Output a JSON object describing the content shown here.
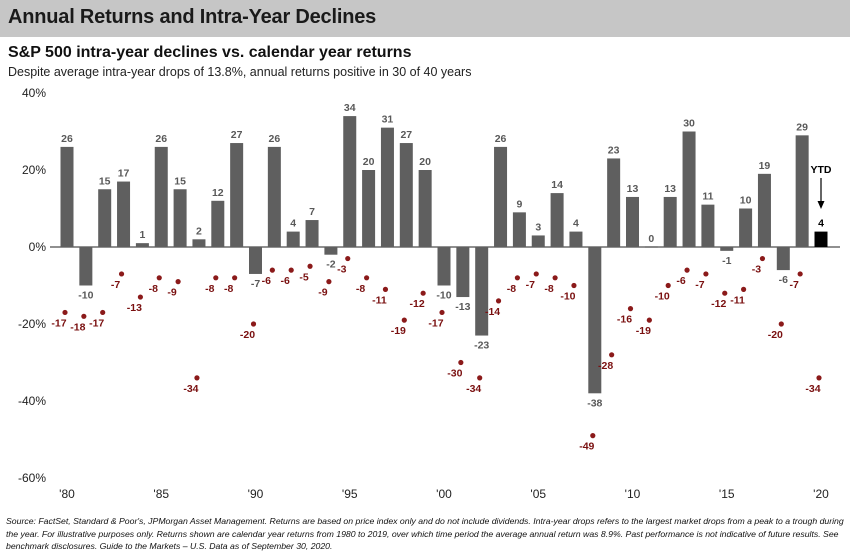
{
  "banner": {
    "title": "Annual Returns and Intra-Year Declines"
  },
  "chart_data": {
    "type": "bar",
    "title": "S&P 500 intra-year declines vs. calendar year returns",
    "subtitle": "Despite average intra-year drops of 13.8%, annual returns positive in 30 of 40 years",
    "ylim": [
      -60,
      40
    ],
    "y_ticks": [
      "40%",
      "20%",
      "0%",
      "-20%",
      "-40%",
      "-60%"
    ],
    "x_ticks": [
      "'80",
      "'85",
      "'90",
      "'95",
      "'00",
      "'05",
      "'10",
      "'15",
      "'20"
    ],
    "years": [
      1980,
      1981,
      1982,
      1983,
      1984,
      1985,
      1986,
      1987,
      1988,
      1989,
      1990,
      1991,
      1992,
      1993,
      1994,
      1995,
      1996,
      1997,
      1998,
      1999,
      2000,
      2001,
      2002,
      2003,
      2004,
      2005,
      2006,
      2007,
      2008,
      2009,
      2010,
      2011,
      2012,
      2013,
      2014,
      2015,
      2016,
      2017,
      2018,
      2019,
      2020
    ],
    "series": [
      {
        "values": [
          26,
          -10,
          15,
          17,
          1,
          26,
          15,
          2,
          12,
          27,
          -7,
          26,
          4,
          7,
          -2,
          34,
          20,
          31,
          27,
          20,
          -10,
          -13,
          -23,
          26,
          9,
          3,
          14,
          4,
          -38,
          23,
          13,
          0,
          13,
          30,
          11,
          -1,
          10,
          19,
          -6,
          29,
          4
        ]
      },
      {
        "values": [
          -17,
          -18,
          -17,
          -7,
          -13,
          -8,
          -9,
          -34,
          -8,
          -8,
          -20,
          -6,
          -6,
          -5,
          -9,
          -3,
          -8,
          -11,
          -19,
          -12,
          -17,
          -30,
          -34,
          -14,
          -8,
          -7,
          -8,
          -10,
          -49,
          -28,
          -16,
          -19,
          -10,
          -6,
          -7,
          -12,
          -11,
          -3,
          -20,
          -7,
          -34
        ]
      }
    ],
    "ytd": {
      "label": "YTD",
      "value": "4"
    },
    "colors": {
      "bars": "#5f5f5f",
      "ytd_bar": "#000000",
      "dots": "#8b1a1a",
      "dot_labels": "#7a1010"
    }
  },
  "footnote": "Source: FactSet, Standard & Poor's, JPMorgan Asset Management. Returns are based on price index only and do not include dividends. Intra-year drops refers to the largest market drops from a peak to a trough during the year. For illustrative purposes only. Returns shown are calendar year returns from 1980 to 2019, over which time period the average annual return was 8.9%. Past performance is not indicative of future results. See benchmark disclosures. Guide to the Markets – U.S. Data as of September 30, 2020."
}
